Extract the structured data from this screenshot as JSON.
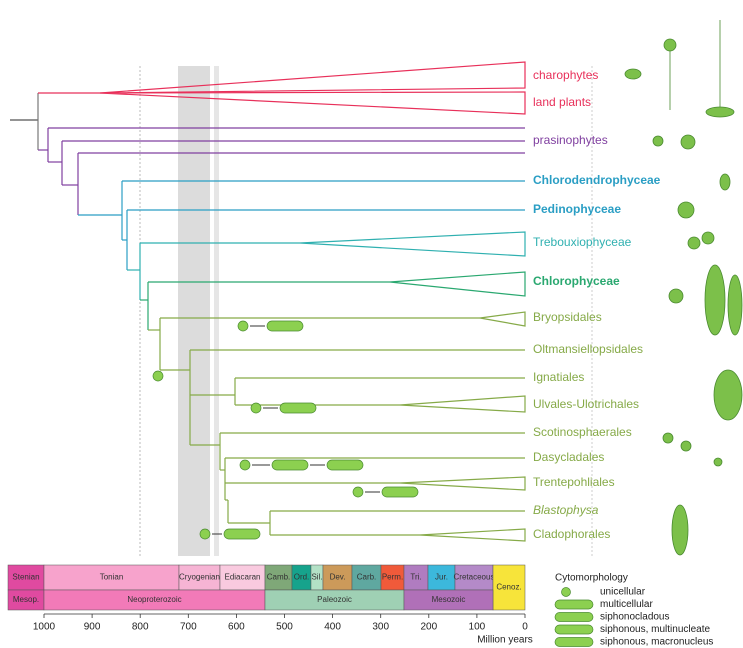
{
  "clades": [
    {
      "label": "charophytes",
      "color": "#e8305a"
    },
    {
      "label": "land plants",
      "color": "#e8305a"
    },
    {
      "label": "prasinophytes",
      "color": "#8040a0"
    },
    {
      "label": "Chlorodendrophyceae",
      "color": "#2a9ec4"
    },
    {
      "label": "Pedinophyceae",
      "color": "#2a9ec4"
    },
    {
      "label": "Trebouxiophyceae",
      "color": "#2fb0b0"
    },
    {
      "label": "Chlorophyceae",
      "color": "#2aa870"
    },
    {
      "label": "Bryopsidales",
      "color": "#86aa48"
    },
    {
      "label": "Oltmansiellopsidales",
      "color": "#86aa48"
    },
    {
      "label": "Ignatiales",
      "color": "#86aa48"
    },
    {
      "label": "Ulvales-Ulotrichales",
      "color": "#86aa48"
    },
    {
      "label": "Scotinosphaerales",
      "color": "#86aa48"
    },
    {
      "label": "Dasycladales",
      "color": "#86aa48"
    },
    {
      "label": "Trentepohliales",
      "color": "#86aa48"
    },
    {
      "label": "Blastophysa",
      "color": "#86aa48",
      "italic": true
    },
    {
      "label": "Cladophorales",
      "color": "#86aa48"
    }
  ],
  "timescale": {
    "periods": [
      "Stenian",
      "Tonian",
      "Cryogenian",
      "Ediacaran",
      "Camb.",
      "Ord.",
      "Sil.",
      "Dev.",
      "Carb.",
      "Perm.",
      "Tri.",
      "Jur.",
      "Cretaceous",
      "Cenoz."
    ],
    "eras": [
      "Mesop.",
      "Neoproterozoic",
      "Paleozoic",
      "Mesozoic"
    ]
  },
  "axis": {
    "ticks": [
      1000,
      900,
      800,
      700,
      600,
      500,
      400,
      300,
      200,
      100,
      0
    ],
    "label": "Million years"
  },
  "legend": {
    "title": "Cytomorphology",
    "items": [
      "unicellular",
      "multicellular",
      "siphonocladous",
      "siphonous, multinucleate",
      "siphonous, macronucleus"
    ]
  }
}
